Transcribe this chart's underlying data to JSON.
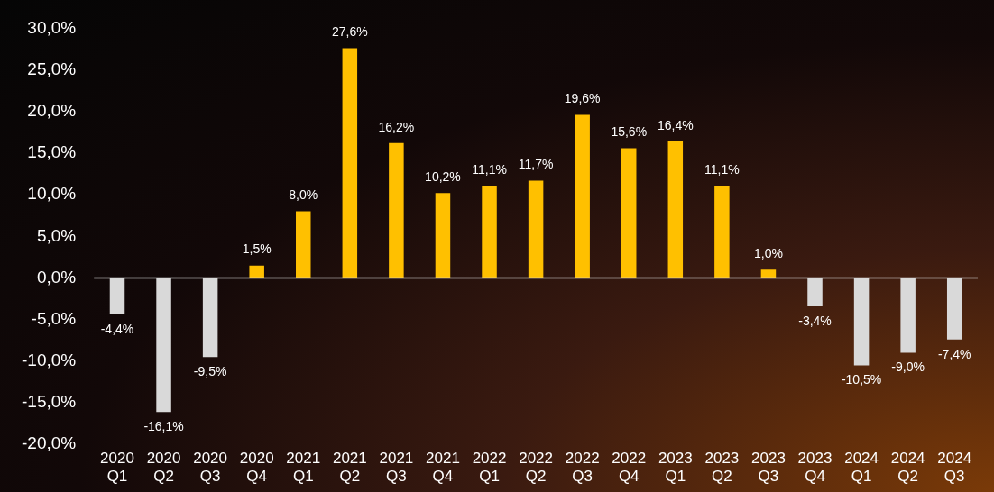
{
  "chart_data": {
    "type": "bar",
    "categories": [
      "2020 Q1",
      "2020 Q2",
      "2020 Q3",
      "2020 Q4",
      "2021 Q1",
      "2021 Q2",
      "2021 Q3",
      "2021 Q4",
      "2022 Q1",
      "2022 Q2",
      "2022 Q3",
      "2022 Q4",
      "2023 Q1",
      "2023 Q2",
      "2023 Q3",
      "2023 Q4",
      "2024 Q1",
      "2024 Q2",
      "2024 Q3"
    ],
    "values": [
      -4.4,
      -16.1,
      -9.5,
      1.5,
      8.0,
      27.6,
      16.2,
      10.2,
      11.1,
      11.7,
      19.6,
      15.6,
      16.4,
      11.1,
      1.0,
      -3.4,
      -10.5,
      -9.0,
      -7.4
    ],
    "colors": [
      "#d9d9d9",
      "#d9d9d9",
      "#d9d9d9",
      "#ffc000",
      "#ffc000",
      "#ffc000",
      "#ffc000",
      "#ffc000",
      "#ffc000",
      "#ffc000",
      "#ffc000",
      "#ffc000",
      "#ffc000",
      "#ffc000",
      "#ffc000",
      "#d9d9d9",
      "#d9d9d9",
      "#d9d9d9",
      "#d9d9d9"
    ],
    "value_labels": [
      "-4,4%",
      "-16,1%",
      "-9,5%",
      "1,5%",
      "8,0%",
      "27,6%",
      "16,2%",
      "10,2%",
      "11,1%",
      "11,7%",
      "19,6%",
      "15,6%",
      "16,4%",
      "11,1%",
      "1,0%",
      "-3,4%",
      "-10,5%",
      "-9,0%",
      "-7,4%"
    ],
    "ylim": [
      -20,
      30
    ],
    "yticks": [
      {
        "value": -20,
        "label": "-20,0%"
      },
      {
        "value": -15,
        "label": "-15,0%"
      },
      {
        "value": -10,
        "label": "-10,0%"
      },
      {
        "value": -5,
        "label": "-5,0%"
      },
      {
        "value": 0,
        "label": "0,0%"
      },
      {
        "value": 5,
        "label": "5,0%"
      },
      {
        "value": 10,
        "label": "10,0%"
      },
      {
        "value": 15,
        "label": "15,0%"
      },
      {
        "value": 20,
        "label": "20,0%"
      },
      {
        "value": 25,
        "label": "25,0%"
      },
      {
        "value": 30,
        "label": "30,0%"
      }
    ],
    "ref_lines": [
      {
        "axis": "y",
        "value": 0,
        "color": "#d9d9d9"
      }
    ],
    "grid": false,
    "legend": false
  }
}
